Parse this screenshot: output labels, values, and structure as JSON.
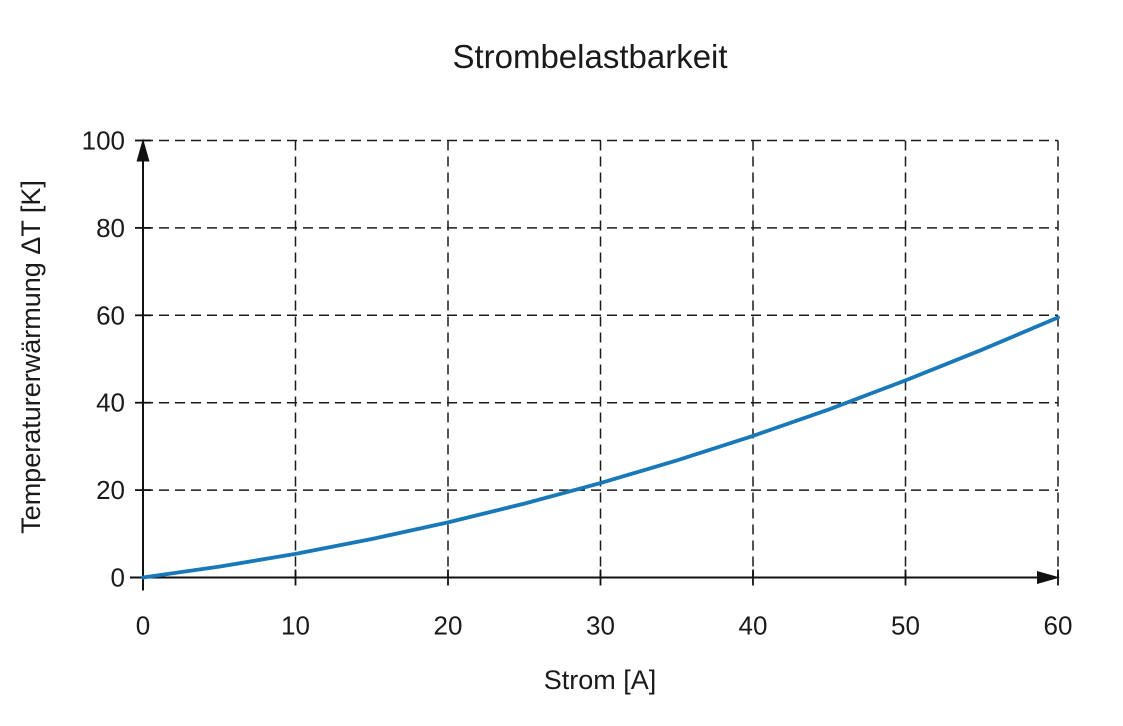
{
  "chart_data": {
    "type": "line",
    "title": "Strombelastbarkeit",
    "xlabel": "Strom [A]",
    "ylabel": "Temperaturerwärmung ΔT [K]",
    "x": [
      0,
      5,
      10,
      15,
      20,
      25,
      30,
      35,
      40,
      45,
      50,
      55,
      60
    ],
    "y": [
      0,
      2.5,
      5.4,
      8.8,
      12.6,
      16.9,
      21.6,
      26.8,
      32.4,
      38.5,
      45.1,
      52.1,
      59.5
    ],
    "xticks": [
      0,
      10,
      20,
      30,
      40,
      50,
      60
    ],
    "yticks": [
      0,
      20,
      40,
      60,
      80,
      100
    ],
    "xlim": [
      0,
      60
    ],
    "ylim": [
      0,
      100
    ],
    "grid": "dashed",
    "legend": "none",
    "line_color": "#1878b8",
    "axis_color": "#111111",
    "grid_color": "#1a1a1a",
    "background_color": "#ffffff"
  }
}
